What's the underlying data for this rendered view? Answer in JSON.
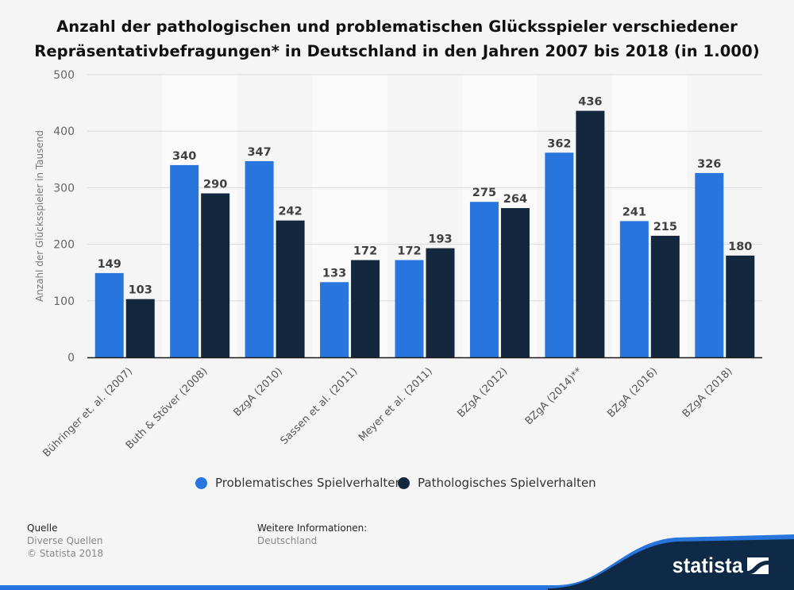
{
  "title": {
    "line1": "Anzahl der pathologischen und problematischen Glücksspieler verschiedener",
    "line2": "Repräsentativbefragungen* in Deutschland in den Jahren 2007 bis 2018 (in 1.000)"
  },
  "colors": {
    "problematic": "#2876dd",
    "pathological": "#13283f",
    "stripe": "#fafafa",
    "background": "#f5f5f5",
    "gridline": "#dddddd",
    "brand_dark": "#0e2a47",
    "brand_blue": "#2876dd"
  },
  "chart_data": {
    "type": "bar",
    "title": "Anzahl der pathologischen und problematischen Glücksspieler verschiedener Repräsentativbefragungen* in Deutschland in den Jahren 2007 bis 2018 (in 1.000)",
    "xlabel": "",
    "ylabel": "Anzahl der Glücksspieler in Tausend",
    "ylim": [
      0,
      500
    ],
    "yticks": [
      0,
      100,
      200,
      300,
      400,
      500
    ],
    "grid": true,
    "legend_position": "bottom",
    "categories": [
      "Bühringer et. al. (2007)",
      "Buth & Stöver (2008)",
      "BzgA (2010)",
      "Sassen et al. (2011)",
      "Meyer et al. (2011)",
      "BZgA (2012)",
      "BZgA (2014)**",
      "BZgA (2016)",
      "BZgA (2018)"
    ],
    "series": [
      {
        "name": "Problematisches Spielverhalten",
        "values": [
          149,
          340,
          347,
          133,
          172,
          275,
          362,
          241,
          326
        ]
      },
      {
        "name": "Pathologisches Spielverhalten",
        "values": [
          103,
          290,
          242,
          172,
          193,
          264,
          436,
          215,
          180
        ]
      }
    ]
  },
  "footer": {
    "source_heading": "Quelle",
    "source_line1": "Diverse Quellen",
    "source_line2": "© Statista 2018",
    "info_heading": "Weitere Informationen:",
    "info_line1": "Deutschland"
  },
  "brand": {
    "name": "statista"
  }
}
